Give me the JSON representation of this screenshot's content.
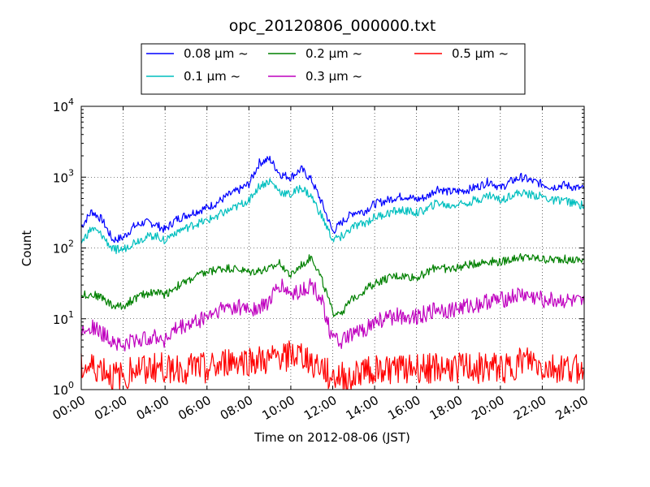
{
  "chart_data": {
    "type": "line",
    "title": "opc_20120806_000000.txt",
    "xlabel": "Time on 2012-08-06 (JST)",
    "ylabel": "Count",
    "yscale": "log",
    "ylim": [
      1,
      10000
    ],
    "xlim": [
      "00:00",
      "24:00"
    ],
    "x_ticks": [
      "00:00",
      "02:00",
      "04:00",
      "06:00",
      "08:00",
      "10:00",
      "12:00",
      "14:00",
      "16:00",
      "18:00",
      "20:00",
      "22:00",
      "24:00"
    ],
    "y_ticks": [
      {
        "base": "10",
        "exp": "0"
      },
      {
        "base": "10",
        "exp": "1"
      },
      {
        "base": "10",
        "exp": "2"
      },
      {
        "base": "10",
        "exp": "3"
      },
      {
        "base": "10",
        "exp": "4"
      }
    ],
    "grid": true,
    "legend_position": "top-center",
    "x_hours": [
      0,
      0.5,
      1,
      1.5,
      2,
      2.5,
      3,
      3.5,
      4,
      4.5,
      5,
      5.5,
      6,
      6.5,
      7,
      7.5,
      8,
      8.5,
      9,
      9.5,
      10,
      10.5,
      11,
      11.5,
      12,
      12.5,
      13,
      13.5,
      14,
      14.5,
      15,
      15.5,
      16,
      16.5,
      17,
      17.5,
      18,
      18.5,
      19,
      19.5,
      20,
      20.5,
      21,
      21.5,
      22,
      22.5,
      23,
      23.5,
      24
    ],
    "series": [
      {
        "name": "0.08 μm ~",
        "color": "#0000ff",
        "values": [
          200,
          330,
          250,
          130,
          140,
          200,
          230,
          220,
          180,
          250,
          290,
          330,
          370,
          440,
          550,
          650,
          800,
          1600,
          1800,
          1100,
          1000,
          1300,
          900,
          420,
          170,
          240,
          320,
          330,
          420,
          460,
          520,
          540,
          480,
          530,
          700,
          620,
          630,
          670,
          750,
          880,
          700,
          870,
          1000,
          880,
          800,
          720,
          780,
          720,
          680
        ]
      },
      {
        "name": "0.1 μm ~",
        "color": "#00bfbf",
        "values": [
          120,
          190,
          150,
          95,
          95,
          120,
          140,
          150,
          130,
          170,
          190,
          220,
          240,
          290,
          330,
          390,
          480,
          750,
          880,
          620,
          560,
          720,
          520,
          270,
          130,
          150,
          200,
          220,
          270,
          300,
          330,
          340,
          310,
          350,
          440,
          390,
          420,
          450,
          490,
          560,
          470,
          560,
          600,
          560,
          530,
          460,
          480,
          420,
          400
        ]
      },
      {
        "name": "0.2 μm ~",
        "color": "#008000",
        "values": [
          22,
          22,
          20,
          15,
          15,
          19,
          22,
          24,
          22,
          28,
          33,
          40,
          45,
          50,
          52,
          50,
          45,
          48,
          50,
          62,
          40,
          58,
          75,
          35,
          12,
          13,
          20,
          25,
          32,
          36,
          40,
          40,
          38,
          45,
          55,
          50,
          53,
          58,
          62,
          65,
          63,
          70,
          75,
          72,
          70,
          68,
          70,
          67,
          68
        ]
      },
      {
        "name": "0.3 μm ~",
        "color": "#bf00bf",
        "values": [
          7,
          8,
          6,
          5,
          4,
          5,
          5,
          6,
          5,
          7,
          8,
          9,
          11,
          13,
          15,
          15,
          14,
          14,
          18,
          30,
          22,
          25,
          30,
          18,
          5,
          5,
          6,
          7,
          9,
          10,
          11,
          11,
          11,
          12,
          14,
          13,
          14,
          15,
          16,
          18,
          18,
          20,
          22,
          20,
          19,
          18,
          18,
          17,
          16
        ]
      },
      {
        "name": "0.5 μm ~",
        "color": "#ff0000",
        "values": [
          2,
          2,
          2,
          1.5,
          1.5,
          2,
          2,
          2,
          2,
          2,
          2,
          2,
          2,
          2,
          2.5,
          2.5,
          2.5,
          2.5,
          2.5,
          3,
          3,
          3,
          2.5,
          2,
          1.5,
          1.5,
          1.5,
          2,
          2,
          2,
          2,
          2,
          2,
          2,
          2,
          2,
          2,
          2,
          2,
          2,
          2,
          2,
          2.5,
          2.5,
          2,
          2,
          2,
          2,
          2
        ]
      }
    ]
  }
}
